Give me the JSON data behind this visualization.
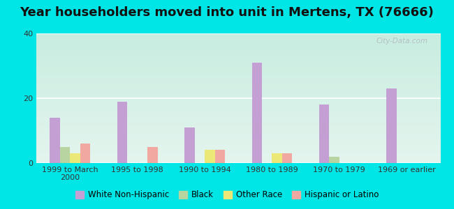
{
  "title": "Year householders moved into unit in Mertens, TX (76666)",
  "categories": [
    "1999 to March\n2000",
    "1995 to 1998",
    "1990 to 1994",
    "1980 to 1989",
    "1970 to 1979",
    "1969 or earlier"
  ],
  "series": {
    "White Non-Hispanic": [
      14,
      19,
      11,
      31,
      18,
      23
    ],
    "Black": [
      5,
      0,
      0,
      0,
      2,
      0
    ],
    "Other Race": [
      3,
      0,
      4,
      3,
      0,
      0
    ],
    "Hispanic or Latino": [
      6,
      5,
      4,
      3,
      0,
      0
    ]
  },
  "colors": {
    "White Non-Hispanic": "#c49fd4",
    "Black": "#b8d4a0",
    "Other Race": "#ece878",
    "Hispanic or Latino": "#f0a8a0"
  },
  "ylim": [
    0,
    40
  ],
  "yticks": [
    0,
    20,
    40
  ],
  "bar_width": 0.15,
  "background_color": "#00e5e5",
  "plot_bg_color_top": "#e4f5ee",
  "plot_bg_color_bottom": "#c8ede0",
  "grid_color": "#ffffff",
  "title_fontsize": 13,
  "legend_fontsize": 8.5,
  "tick_fontsize": 8,
  "watermark": "City-Data.com"
}
